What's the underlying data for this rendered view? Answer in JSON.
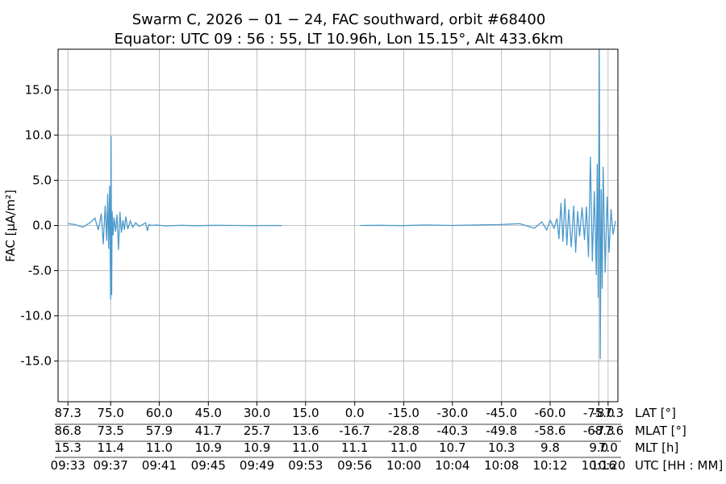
{
  "chart_data": {
    "type": "line",
    "title_line1": "Swarm C,  2026 − 01 − 24,  FAC southward,  orbit #68400",
    "title_line2": "Equator:  UTC 09 : 56 : 55,  LT 10.96h,  Lon 15.15°,  Alt 433.6km",
    "ylabel": "FAC [μA/m²]",
    "ylim": [
      -19.5,
      19.5
    ],
    "yticks": [
      -15,
      -10,
      -5,
      0,
      5,
      10,
      15
    ],
    "ytick_labels": [
      "-15.0",
      "-10.0",
      "-5.0",
      "0.0",
      "5.0",
      "10.0",
      "15.0"
    ],
    "xlim": [
      -0.2,
      11.2
    ],
    "grid": true,
    "line_color": "#4c9acd",
    "x_rows": [
      {
        "name": "LAT [°]",
        "ticks": [
          "87.3",
          "75.0",
          "60.0",
          "45.0",
          "30.0",
          "15.0",
          "0.0",
          "-15.0",
          "-30.0",
          "-45.0",
          "-60.0",
          "-75.0",
          "-87.3"
        ]
      },
      {
        "name": "MLAT [°]",
        "ticks": [
          "86.8",
          "73.5",
          "57.9",
          "41.7",
          "25.7",
          "13.6",
          "-16.7",
          "-28.8",
          "-40.3",
          "-49.8",
          "-58.6",
          "-68.3",
          "-77.6"
        ]
      },
      {
        "name": "MLT [h]",
        "ticks": [
          "15.3",
          "11.4",
          "11.0",
          "10.9",
          "10.9",
          "11.0",
          "11.1",
          "11.0",
          "10.7",
          "10.3",
          "9.8",
          "9.0",
          "7.0"
        ]
      },
      {
        "name": "UTC [HH : MM]",
        "ticks": [
          "09:33",
          "09:37",
          "09:41",
          "09:45",
          "09:49",
          "09:53",
          "09:56",
          "10:00",
          "10:04",
          "10:08",
          "10:12",
          "10:16",
          "10:20"
        ]
      }
    ],
    "xtick_positions": [
      0,
      0.87,
      1.86,
      2.86,
      3.85,
      4.84,
      5.84,
      6.84,
      7.83,
      8.83,
      9.82,
      10.81,
      11.0
    ],
    "series": [
      {
        "segments": [
          {
            "x": [
              0,
              0.15,
              0.3,
              0.45,
              0.55,
              0.62,
              0.68,
              0.72,
              0.76,
              0.79,
              0.81,
              0.83,
              0.85,
              0.87,
              0.88,
              0.89,
              0.9,
              0.92,
              0.94,
              0.97,
              1.0,
              1.03,
              1.06,
              1.09,
              1.12,
              1.15,
              1.18,
              1.22,
              1.27,
              1.32,
              1.38,
              1.45,
              1.52,
              1.58,
              1.62,
              1.65,
              1.7,
              1.8,
              2.0,
              2.3,
              2.6,
              3.0,
              3.4,
              3.8,
              4.2,
              4.35
            ],
            "y": [
              0.2,
              0.1,
              -0.2,
              0.3,
              0.8,
              -0.5,
              1.3,
              -2.1,
              2.2,
              -1.7,
              3.5,
              -2.6,
              4.4,
              -8.2,
              9.9,
              -7.7,
              1.6,
              -1.1,
              0.9,
              -0.7,
              1.2,
              -2.7,
              1.5,
              -0.8,
              0.6,
              -0.5,
              1.0,
              -0.4,
              0.5,
              -0.2,
              0.3,
              -0.1,
              0.1,
              0.3,
              -0.6,
              0.1,
              0.0,
              0.05,
              -0.05,
              0.02,
              -0.03,
              0.02,
              0.0,
              -0.02,
              0.0,
              -0.02
            ]
          },
          {
            "x": [
              5.95,
              6.3,
              6.8,
              7.3,
              7.8,
              8.3,
              8.8,
              9.2,
              9.5,
              9.65,
              9.75,
              9.82,
              9.9,
              9.96,
              10.0,
              10.04,
              10.08,
              10.12,
              10.16,
              10.2,
              10.25,
              10.3,
              10.34,
              10.38,
              10.42,
              10.47,
              10.52,
              10.56,
              10.6,
              10.64,
              10.68,
              10.72,
              10.76,
              10.78,
              10.8,
              10.82,
              10.84,
              10.86,
              10.88,
              10.9,
              10.94,
              10.98,
              11.02,
              11.06,
              11.1,
              11.15
            ],
            "y": [
              0.0,
              0.02,
              -0.02,
              0.05,
              0.0,
              0.05,
              0.1,
              0.2,
              -0.3,
              0.4,
              -0.5,
              0.6,
              -0.3,
              0.8,
              -1.5,
              2.5,
              -1.8,
              3.0,
              -2.2,
              1.8,
              -2.4,
              2.2,
              -3.0,
              1.6,
              -1.2,
              2.0,
              -1.6,
              2.1,
              -3.5,
              7.6,
              -4.0,
              3.8,
              -5.5,
              6.8,
              -8.0,
              20.0,
              -14.8,
              4.0,
              -7.0,
              6.5,
              -5.2,
              3.2,
              -3.0,
              1.8,
              -1.0,
              0.5
            ]
          }
        ]
      }
    ]
  }
}
